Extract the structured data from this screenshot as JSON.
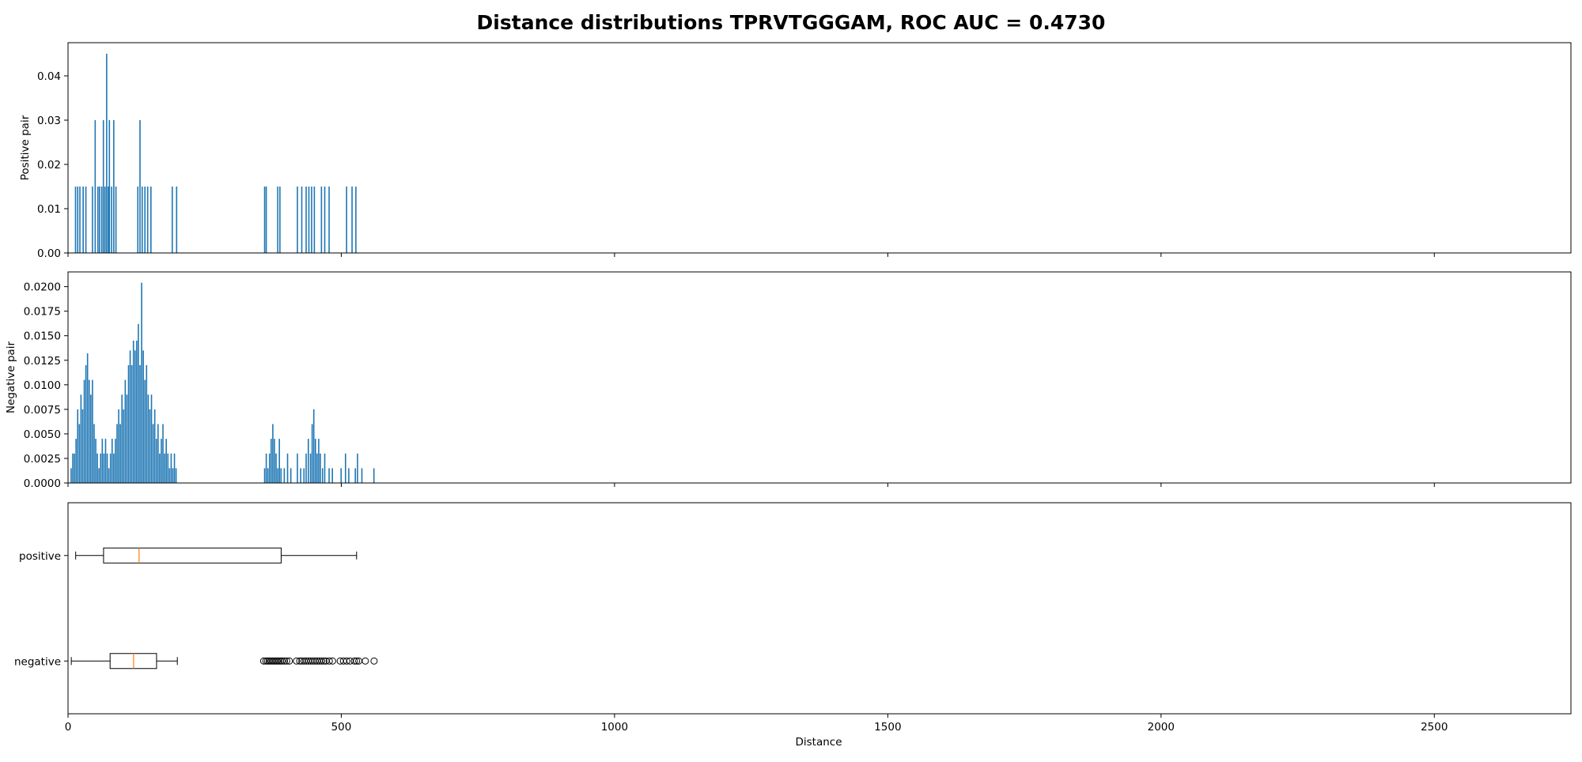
{
  "chart_data": {
    "type": "histogram_and_boxplot",
    "title": "Distance distributions TPRVTGGGAM, ROC AUC = 0.4730",
    "xlabel": "Distance",
    "xlim": [
      0,
      2750
    ],
    "x_ticks": [
      0,
      500,
      1000,
      1500,
      2000,
      2500
    ],
    "x_tick_labels": [
      "0",
      "500",
      "1000",
      "1500",
      "2000",
      "2500"
    ],
    "bar_color": "#1f77b4",
    "median_color": "#ff7f0e",
    "panels": [
      {
        "id": "positive-hist",
        "type": "bar",
        "ylabel": "Positive pair",
        "ylim": [
          0,
          0.0475
        ],
        "y_ticks": [
          0,
          0.01,
          0.02,
          0.03,
          0.04
        ],
        "y_tick_labels": [
          "0.00",
          "0.01",
          "0.02",
          "0.03",
          "0.04"
        ],
        "bins": [
          {
            "x": 14,
            "y": 0.015
          },
          {
            "x": 18,
            "y": 0.015
          },
          {
            "x": 22,
            "y": 0.015
          },
          {
            "x": 28,
            "y": 0.015
          },
          {
            "x": 33,
            "y": 0.015
          },
          {
            "x": 45,
            "y": 0.015
          },
          {
            "x": 50,
            "y": 0.03
          },
          {
            "x": 55,
            "y": 0.015
          },
          {
            "x": 58,
            "y": 0.015
          },
          {
            "x": 62,
            "y": 0.015
          },
          {
            "x": 65,
            "y": 0.03
          },
          {
            "x": 68,
            "y": 0.015
          },
          {
            "x": 71,
            "y": 0.045
          },
          {
            "x": 74,
            "y": 0.015
          },
          {
            "x": 76,
            "y": 0.03
          },
          {
            "x": 80,
            "y": 0.015
          },
          {
            "x": 84,
            "y": 0.03
          },
          {
            "x": 88,
            "y": 0.015
          },
          {
            "x": 128,
            "y": 0.015
          },
          {
            "x": 132,
            "y": 0.03
          },
          {
            "x": 136,
            "y": 0.015
          },
          {
            "x": 141,
            "y": 0.015
          },
          {
            "x": 146,
            "y": 0.015
          },
          {
            "x": 152,
            "y": 0.015
          },
          {
            "x": 191,
            "y": 0.015
          },
          {
            "x": 199,
            "y": 0.015
          },
          {
            "x": 360,
            "y": 0.015
          },
          {
            "x": 363,
            "y": 0.015
          },
          {
            "x": 384,
            "y": 0.015
          },
          {
            "x": 388,
            "y": 0.015
          },
          {
            "x": 420,
            "y": 0.015
          },
          {
            "x": 428,
            "y": 0.015
          },
          {
            "x": 436,
            "y": 0.015
          },
          {
            "x": 441,
            "y": 0.015
          },
          {
            "x": 446,
            "y": 0.015
          },
          {
            "x": 451,
            "y": 0.015
          },
          {
            "x": 464,
            "y": 0.015
          },
          {
            "x": 470,
            "y": 0.015
          },
          {
            "x": 478,
            "y": 0.015
          },
          {
            "x": 510,
            "y": 0.015
          },
          {
            "x": 520,
            "y": 0.015
          },
          {
            "x": 527,
            "y": 0.015
          }
        ]
      },
      {
        "id": "negative-hist",
        "type": "bar",
        "ylabel": "Negative pair",
        "ylim": [
          0,
          0.0215
        ],
        "y_ticks": [
          0,
          0.0025,
          0.005,
          0.0075,
          0.01,
          0.0125,
          0.015,
          0.0175,
          0.02
        ],
        "y_tick_labels": [
          "0.0000",
          "0.0025",
          "0.0050",
          "0.0075",
          "0.0100",
          "0.0125",
          "0.0150",
          "0.0175",
          "0.0200"
        ],
        "bins": [
          {
            "x": 6,
            "y": 0.0015
          },
          {
            "x": 9,
            "y": 0.003
          },
          {
            "x": 12,
            "y": 0.003
          },
          {
            "x": 15,
            "y": 0.0045
          },
          {
            "x": 18,
            "y": 0.0075
          },
          {
            "x": 21,
            "y": 0.006
          },
          {
            "x": 24,
            "y": 0.009
          },
          {
            "x": 27,
            "y": 0.0075
          },
          {
            "x": 30,
            "y": 0.0105
          },
          {
            "x": 33,
            "y": 0.012
          },
          {
            "x": 36,
            "y": 0.0132
          },
          {
            "x": 39,
            "y": 0.0105
          },
          {
            "x": 42,
            "y": 0.009
          },
          {
            "x": 45,
            "y": 0.0105
          },
          {
            "x": 48,
            "y": 0.006
          },
          {
            "x": 51,
            "y": 0.0045
          },
          {
            "x": 54,
            "y": 0.003
          },
          {
            "x": 57,
            "y": 0.0015
          },
          {
            "x": 60,
            "y": 0.003
          },
          {
            "x": 63,
            "y": 0.0045
          },
          {
            "x": 66,
            "y": 0.003
          },
          {
            "x": 69,
            "y": 0.0045
          },
          {
            "x": 72,
            "y": 0.003
          },
          {
            "x": 75,
            "y": 0.0015
          },
          {
            "x": 78,
            "y": 0.003
          },
          {
            "x": 81,
            "y": 0.0045
          },
          {
            "x": 84,
            "y": 0.003
          },
          {
            "x": 87,
            "y": 0.0045
          },
          {
            "x": 90,
            "y": 0.006
          },
          {
            "x": 93,
            "y": 0.0075
          },
          {
            "x": 96,
            "y": 0.006
          },
          {
            "x": 99,
            "y": 0.009
          },
          {
            "x": 102,
            "y": 0.0075
          },
          {
            "x": 105,
            "y": 0.0105
          },
          {
            "x": 108,
            "y": 0.009
          },
          {
            "x": 111,
            "y": 0.012
          },
          {
            "x": 114,
            "y": 0.0135
          },
          {
            "x": 117,
            "y": 0.012
          },
          {
            "x": 120,
            "y": 0.0145
          },
          {
            "x": 123,
            "y": 0.0135
          },
          {
            "x": 126,
            "y": 0.0145
          },
          {
            "x": 129,
            "y": 0.0162
          },
          {
            "x": 132,
            "y": 0.012
          },
          {
            "x": 135,
            "y": 0.0204
          },
          {
            "x": 138,
            "y": 0.0135
          },
          {
            "x": 141,
            "y": 0.0105
          },
          {
            "x": 144,
            "y": 0.012
          },
          {
            "x": 147,
            "y": 0.009
          },
          {
            "x": 150,
            "y": 0.0075
          },
          {
            "x": 153,
            "y": 0.009
          },
          {
            "x": 156,
            "y": 0.006
          },
          {
            "x": 159,
            "y": 0.0075
          },
          {
            "x": 162,
            "y": 0.0045
          },
          {
            "x": 165,
            "y": 0.006
          },
          {
            "x": 168,
            "y": 0.003
          },
          {
            "x": 171,
            "y": 0.0045
          },
          {
            "x": 174,
            "y": 0.006
          },
          {
            "x": 177,
            "y": 0.003
          },
          {
            "x": 180,
            "y": 0.0045
          },
          {
            "x": 183,
            "y": 0.003
          },
          {
            "x": 186,
            "y": 0.0015
          },
          {
            "x": 189,
            "y": 0.003
          },
          {
            "x": 192,
            "y": 0.0015
          },
          {
            "x": 195,
            "y": 0.003
          },
          {
            "x": 198,
            "y": 0.0015
          },
          {
            "x": 360,
            "y": 0.0015
          },
          {
            "x": 363,
            "y": 0.003
          },
          {
            "x": 366,
            "y": 0.0015
          },
          {
            "x": 369,
            "y": 0.003
          },
          {
            "x": 372,
            "y": 0.0045
          },
          {
            "x": 375,
            "y": 0.006
          },
          {
            "x": 378,
            "y": 0.0045
          },
          {
            "x": 381,
            "y": 0.003
          },
          {
            "x": 384,
            "y": 0.0015
          },
          {
            "x": 387,
            "y": 0.0045
          },
          {
            "x": 390,
            "y": 0.0015
          },
          {
            "x": 396,
            "y": 0.0015
          },
          {
            "x": 402,
            "y": 0.003
          },
          {
            "x": 408,
            "y": 0.0015
          },
          {
            "x": 420,
            "y": 0.003
          },
          {
            "x": 426,
            "y": 0.0015
          },
          {
            "x": 432,
            "y": 0.0015
          },
          {
            "x": 436,
            "y": 0.003
          },
          {
            "x": 440,
            "y": 0.0045
          },
          {
            "x": 444,
            "y": 0.003
          },
          {
            "x": 447,
            "y": 0.006
          },
          {
            "x": 450,
            "y": 0.0075
          },
          {
            "x": 453,
            "y": 0.0045
          },
          {
            "x": 456,
            "y": 0.003
          },
          {
            "x": 459,
            "y": 0.0045
          },
          {
            "x": 462,
            "y": 0.003
          },
          {
            "x": 466,
            "y": 0.0015
          },
          {
            "x": 470,
            "y": 0.003
          },
          {
            "x": 478,
            "y": 0.0015
          },
          {
            "x": 484,
            "y": 0.0015
          },
          {
            "x": 500,
            "y": 0.0015
          },
          {
            "x": 508,
            "y": 0.003
          },
          {
            "x": 514,
            "y": 0.0015
          },
          {
            "x": 526,
            "y": 0.0015
          },
          {
            "x": 530,
            "y": 0.003
          },
          {
            "x": 538,
            "y": 0.0015
          },
          {
            "x": 560,
            "y": 0.0015
          }
        ]
      },
      {
        "id": "boxplot",
        "type": "boxplot",
        "categories": [
          "positive",
          "negative"
        ],
        "boxes": [
          {
            "label": "positive",
            "whisker_low": 14,
            "q1": 65,
            "median": 130,
            "q3": 390,
            "whisker_high": 528,
            "outliers": []
          },
          {
            "label": "negative",
            "whisker_low": 6,
            "q1": 77,
            "median": 120,
            "q3": 162,
            "whisker_high": 200,
            "outliers": [
              358,
              362,
              365,
              368,
              371,
              374,
              377,
              380,
              383,
              386,
              389,
              392,
              396,
              400,
              405,
              418,
              424,
              428,
              432,
              436,
              440,
              444,
              448,
              452,
              456,
              460,
              464,
              468,
              472,
              478,
              484,
              498,
              504,
              510,
              516,
              524,
              528,
              532,
              544,
              560
            ]
          }
        ]
      }
    ]
  }
}
